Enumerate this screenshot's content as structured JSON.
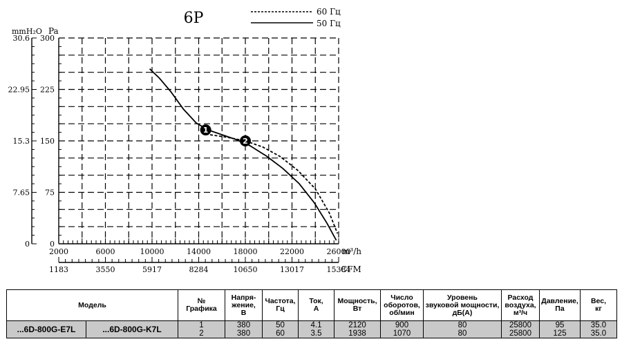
{
  "chart_data": {
    "type": "line",
    "title": "6P",
    "y_units": [
      "mmH₂O",
      "Pa"
    ],
    "x_units": [
      "m³/h",
      "CFM"
    ],
    "y_pa_ticks": [
      "0",
      "75",
      "150",
      "225",
      "300"
    ],
    "y_mmh2o_ticks": [
      "0",
      "7.65",
      "15.3",
      "22.95",
      "30.6"
    ],
    "x_m3h_ticks": [
      "2000",
      "6000",
      "10000",
      "14000",
      "18000",
      "22000",
      "26000"
    ],
    "x_cfm_ticks": [
      "1183",
      "3550",
      "5917",
      "8284",
      "10650",
      "13017",
      "15384"
    ],
    "xlim": [
      2000,
      26000
    ],
    "ylim": [
      0,
      300
    ],
    "legend_position": "top-right",
    "grid": true,
    "series": [
      {
        "name": "60 Гц",
        "style": "dashed",
        "points": [
          [
            14600,
            160
          ],
          [
            16500,
            155
          ],
          [
            18000,
            150
          ],
          [
            19500,
            141
          ],
          [
            21000,
            127
          ],
          [
            22500,
            107
          ],
          [
            24000,
            80
          ],
          [
            25200,
            45
          ],
          [
            25900,
            15
          ]
        ]
      },
      {
        "name": "50 Гц",
        "style": "solid",
        "points": [
          [
            9800,
            255
          ],
          [
            10600,
            242
          ],
          [
            11600,
            222
          ],
          [
            12700,
            196
          ],
          [
            13800,
            176
          ],
          [
            14800,
            166
          ],
          [
            16000,
            159
          ],
          [
            17200,
            152
          ],
          [
            18400,
            143
          ],
          [
            19800,
            128
          ],
          [
            21200,
            110
          ],
          [
            22600,
            88
          ],
          [
            23900,
            60
          ],
          [
            25000,
            30
          ],
          [
            25800,
            5
          ]
        ]
      }
    ],
    "markers": [
      {
        "label": "1",
        "x": 14600,
        "y": 166
      },
      {
        "label": "2",
        "x": 18000,
        "y": 150
      }
    ]
  },
  "table": {
    "headers": {
      "model": "Модель",
      "graph_no": [
        "№",
        "Графика"
      ],
      "voltage": [
        "Напря-",
        "жение,",
        "В"
      ],
      "frequency": [
        "Частота,",
        "Гц"
      ],
      "current": [
        "Ток,",
        "А"
      ],
      "power": [
        "Мощность,",
        "Вт"
      ],
      "speed": [
        "Число",
        "оборотов,",
        "об/мин"
      ],
      "sound": [
        "Уровень",
        "звуковой мощности,",
        "дБ(А)"
      ],
      "airflow": [
        "Расход",
        "воздуха,",
        "м³/ч"
      ],
      "pressure": [
        "Давление,",
        "Па"
      ],
      "weight": [
        "Вес,",
        "кг"
      ]
    },
    "models": [
      "...6D-800G-E7L",
      "...6D-800G-K7L"
    ],
    "graph_no": [
      "1",
      "2"
    ],
    "voltage": [
      "380",
      "380"
    ],
    "frequency": [
      "50",
      "60"
    ],
    "current": [
      "4.1",
      "3.5"
    ],
    "power": [
      "2120",
      "1938"
    ],
    "speed": [
      "900",
      "1070"
    ],
    "sound": [
      "80",
      "80"
    ],
    "airflow": [
      "25800",
      "25800"
    ],
    "pressure": [
      "95",
      "125"
    ],
    "weight": [
      "35.0",
      "35.0"
    ]
  }
}
